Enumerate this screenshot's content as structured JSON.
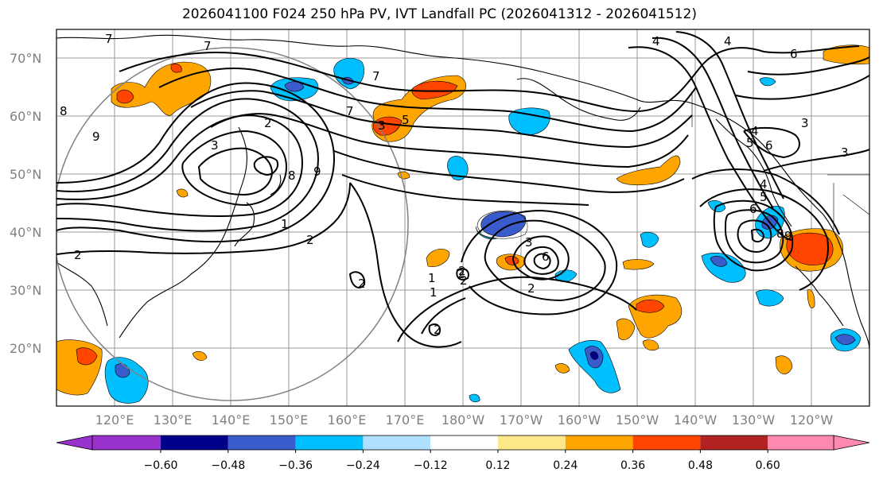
{
  "title": "2026041100 F024 250 hPa PV, IVT Landfall PC (2026041312 - 2026041512)",
  "lat_labels": [
    "70°N",
    "60°N",
    "50°N",
    "40°N",
    "30°N",
    "20°N"
  ],
  "lon_labels": [
    "120°E",
    "130°E",
    "140°E",
    "150°E",
    "160°E",
    "170°E",
    "180°W",
    "170°W",
    "160°W",
    "150°W",
    "140°W",
    "130°W",
    "120°W"
  ],
  "colorbar": {
    "tick_labels": [
      "−0.60",
      "−0.48",
      "−0.36",
      "−0.24",
      "−0.12",
      "0.12",
      "0.24",
      "0.36",
      "0.48",
      "0.60"
    ],
    "colors": [
      "#9932cc",
      "#00008b",
      "#3a5bcc",
      "#00bfff",
      "#b0e0ff",
      "#ffffff",
      "#ffe88a",
      "#ffa500",
      "#ff4500",
      "#b22222",
      "#ff88b0"
    ]
  },
  "contour_labels": [
    "7",
    "8",
    "9",
    "2",
    "3",
    "8",
    "9",
    "7",
    "1",
    "2",
    "2",
    "7",
    "7",
    "3",
    "5",
    "4",
    "4",
    "6",
    "4",
    "6",
    "5",
    "3",
    "3",
    "4",
    "5",
    "6",
    "8",
    "9",
    "2",
    "1",
    "2",
    "3",
    "6",
    "2",
    "2",
    "2",
    "1",
    "2"
  ]
}
